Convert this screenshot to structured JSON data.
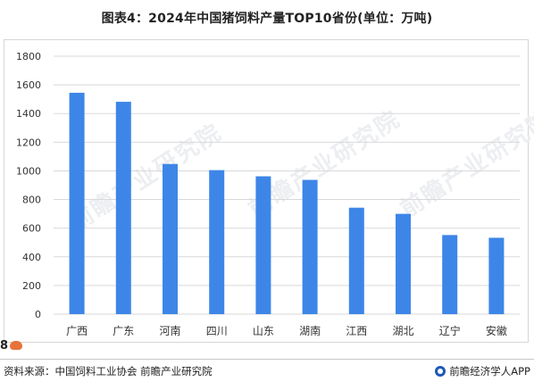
{
  "chart_data": {
    "type": "bar",
    "title": "图表4：2024年中国猪饲料产量TOP10省份(单位：万吨)",
    "categories": [
      "广西",
      "广东",
      "河南",
      "四川",
      "山东",
      "湖南",
      "江西",
      "湖北",
      "辽宁",
      "安徽"
    ],
    "values": [
      1545,
      1482,
      1048,
      1005,
      962,
      937,
      743,
      700,
      552,
      533
    ],
    "ylim": [
      0,
      1800
    ],
    "yticks": [
      "0",
      "200",
      "400",
      "600",
      "800",
      "1000",
      "1200",
      "1400",
      "1600",
      "1800"
    ],
    "xlabel": "",
    "ylabel": "",
    "grid": true,
    "bar_color": "#3d86e8",
    "grid_color": "#d9d9d9"
  },
  "watermark_text": "前瞻产业研究院",
  "footer": {
    "source": "资料来源：中国饲料工业协会 前瞻产业研究院",
    "brand": "前瞻经济学人APP"
  },
  "corner_badge": "8"
}
